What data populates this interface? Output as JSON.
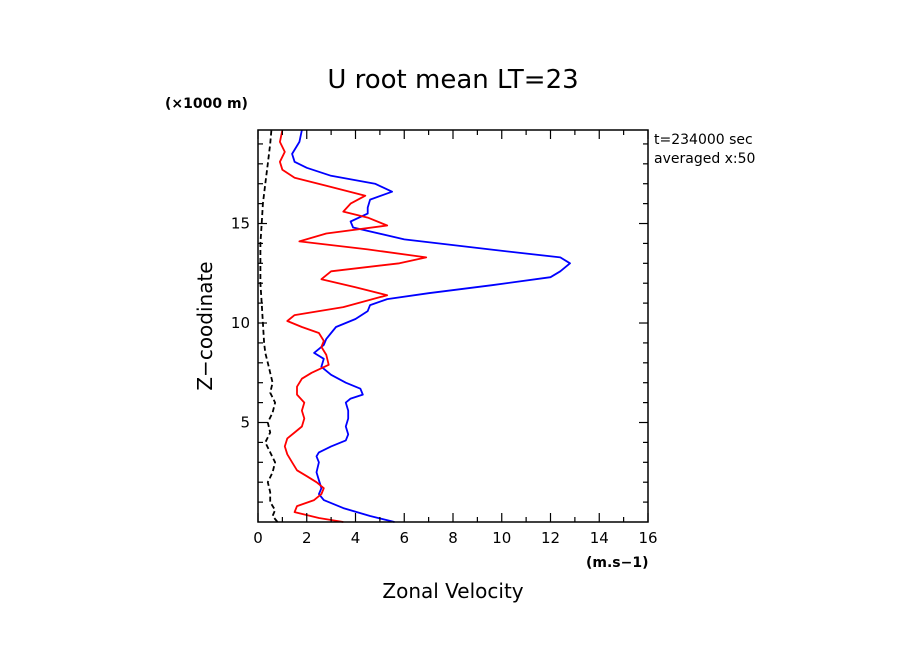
{
  "chart_data": {
    "type": "line",
    "title": "U root mean LT=23",
    "xlabel": "Zonal Velocity",
    "ylabel": "Z−coodinate",
    "x_unit": "(m.s−1)",
    "y_unit": "(×1000 m)",
    "xlim": [
      0,
      16
    ],
    "ylim": [
      0,
      19.7
    ],
    "x_ticks": [
      0,
      2,
      4,
      6,
      8,
      10,
      12,
      14,
      16
    ],
    "x_tick_labels": [
      "0",
      "2",
      "4",
      "6",
      "8",
      "10",
      "12",
      "14",
      "16"
    ],
    "y_ticks": [
      5,
      10,
      15
    ],
    "y_tick_labels": [
      "5",
      "10",
      "15"
    ],
    "annotations": [
      "t=234000 sec",
      "averaged   x:50"
    ],
    "grid": false,
    "series": [
      {
        "color": "#0000ff",
        "style": "solid",
        "points": [
          [
            5.6,
            0.0
          ],
          [
            4.6,
            0.3
          ],
          [
            3.5,
            0.7
          ],
          [
            2.7,
            1.1
          ],
          [
            2.5,
            1.4
          ],
          [
            2.6,
            1.7
          ],
          [
            2.5,
            2.1
          ],
          [
            2.4,
            2.5
          ],
          [
            2.5,
            3.0
          ],
          [
            2.4,
            3.3
          ],
          [
            2.5,
            3.5
          ],
          [
            3.0,
            3.8
          ],
          [
            3.6,
            4.1
          ],
          [
            3.7,
            4.4
          ],
          [
            3.6,
            4.8
          ],
          [
            3.7,
            5.2
          ],
          [
            3.7,
            5.6
          ],
          [
            3.6,
            6.0
          ],
          [
            3.8,
            6.2
          ],
          [
            4.3,
            6.4
          ],
          [
            4.2,
            6.7
          ],
          [
            3.6,
            7.0
          ],
          [
            3.0,
            7.4
          ],
          [
            2.6,
            7.8
          ],
          [
            2.7,
            8.2
          ],
          [
            2.3,
            8.5
          ],
          [
            2.7,
            8.9
          ],
          [
            2.8,
            9.2
          ],
          [
            3.0,
            9.5
          ],
          [
            3.2,
            9.8
          ],
          [
            4.0,
            10.2
          ],
          [
            4.5,
            10.6
          ],
          [
            4.6,
            10.9
          ],
          [
            5.3,
            11.2
          ],
          [
            7.0,
            11.5
          ],
          [
            9.6,
            11.9
          ],
          [
            12.0,
            12.3
          ],
          [
            12.4,
            12.6
          ],
          [
            12.8,
            13.0
          ],
          [
            12.4,
            13.3
          ],
          [
            9.5,
            13.7
          ],
          [
            6.0,
            14.2
          ],
          [
            3.9,
            14.8
          ],
          [
            3.8,
            15.1
          ],
          [
            4.5,
            15.5
          ],
          [
            4.5,
            15.8
          ],
          [
            4.6,
            16.2
          ],
          [
            5.5,
            16.6
          ],
          [
            4.8,
            17.0
          ],
          [
            3.0,
            17.4
          ],
          [
            2.0,
            17.8
          ],
          [
            1.5,
            18.1
          ],
          [
            1.4,
            18.5
          ],
          [
            1.7,
            19.1
          ],
          [
            1.8,
            19.7
          ]
        ]
      },
      {
        "color": "#ff0000",
        "style": "solid",
        "points": [
          [
            3.5,
            0.0
          ],
          [
            2.5,
            0.2
          ],
          [
            1.5,
            0.5
          ],
          [
            1.6,
            0.8
          ],
          [
            2.3,
            1.1
          ],
          [
            2.6,
            1.4
          ],
          [
            2.7,
            1.7
          ],
          [
            2.4,
            2.0
          ],
          [
            2.0,
            2.3
          ],
          [
            1.6,
            2.6
          ],
          [
            1.4,
            3.0
          ],
          [
            1.2,
            3.4
          ],
          [
            1.1,
            3.8
          ],
          [
            1.2,
            4.2
          ],
          [
            1.5,
            4.5
          ],
          [
            1.8,
            4.8
          ],
          [
            1.9,
            5.2
          ],
          [
            1.8,
            5.6
          ],
          [
            1.9,
            6.0
          ],
          [
            1.6,
            6.4
          ],
          [
            1.6,
            6.8
          ],
          [
            1.8,
            7.2
          ],
          [
            2.2,
            7.5
          ],
          [
            2.9,
            7.9
          ],
          [
            2.8,
            8.4
          ],
          [
            2.6,
            8.8
          ],
          [
            2.7,
            9.1
          ],
          [
            2.5,
            9.5
          ],
          [
            1.8,
            9.8
          ],
          [
            1.2,
            10.1
          ],
          [
            1.5,
            10.4
          ],
          [
            3.5,
            10.8
          ],
          [
            5.3,
            11.4
          ],
          [
            4.0,
            11.8
          ],
          [
            2.6,
            12.2
          ],
          [
            3.0,
            12.6
          ],
          [
            5.8,
            13.0
          ],
          [
            6.9,
            13.3
          ],
          [
            4.5,
            13.7
          ],
          [
            1.7,
            14.1
          ],
          [
            2.8,
            14.5
          ],
          [
            5.3,
            14.9
          ],
          [
            4.5,
            15.3
          ],
          [
            3.5,
            15.6
          ],
          [
            3.8,
            16.0
          ],
          [
            4.4,
            16.4
          ],
          [
            2.8,
            16.9
          ],
          [
            1.5,
            17.3
          ],
          [
            1.0,
            17.7
          ],
          [
            0.9,
            18.1
          ],
          [
            1.1,
            18.6
          ],
          [
            0.9,
            19.1
          ],
          [
            1.0,
            19.7
          ]
        ]
      },
      {
        "color": "#000000",
        "style": "dashed",
        "points": [
          [
            0.8,
            0.0
          ],
          [
            0.6,
            0.3
          ],
          [
            0.7,
            0.6
          ],
          [
            0.5,
            1.0
          ],
          [
            0.5,
            1.5
          ],
          [
            0.4,
            2.0
          ],
          [
            0.6,
            2.5
          ],
          [
            0.7,
            3.0
          ],
          [
            0.5,
            3.5
          ],
          [
            0.3,
            4.0
          ],
          [
            0.5,
            4.5
          ],
          [
            0.4,
            5.0
          ],
          [
            0.6,
            5.5
          ],
          [
            0.7,
            6.0
          ],
          [
            0.5,
            6.5
          ],
          [
            0.6,
            7.0
          ],
          [
            0.5,
            7.5
          ],
          [
            0.4,
            8.0
          ],
          [
            0.3,
            8.5
          ],
          [
            0.25,
            9.0
          ],
          [
            0.2,
            10.0
          ],
          [
            0.15,
            11.0
          ],
          [
            0.1,
            12.0
          ],
          [
            0.1,
            13.0
          ],
          [
            0.1,
            14.0
          ],
          [
            0.15,
            15.0
          ],
          [
            0.2,
            16.0
          ],
          [
            0.3,
            17.0
          ],
          [
            0.4,
            18.0
          ],
          [
            0.5,
            19.0
          ],
          [
            0.55,
            19.7
          ]
        ]
      }
    ]
  }
}
